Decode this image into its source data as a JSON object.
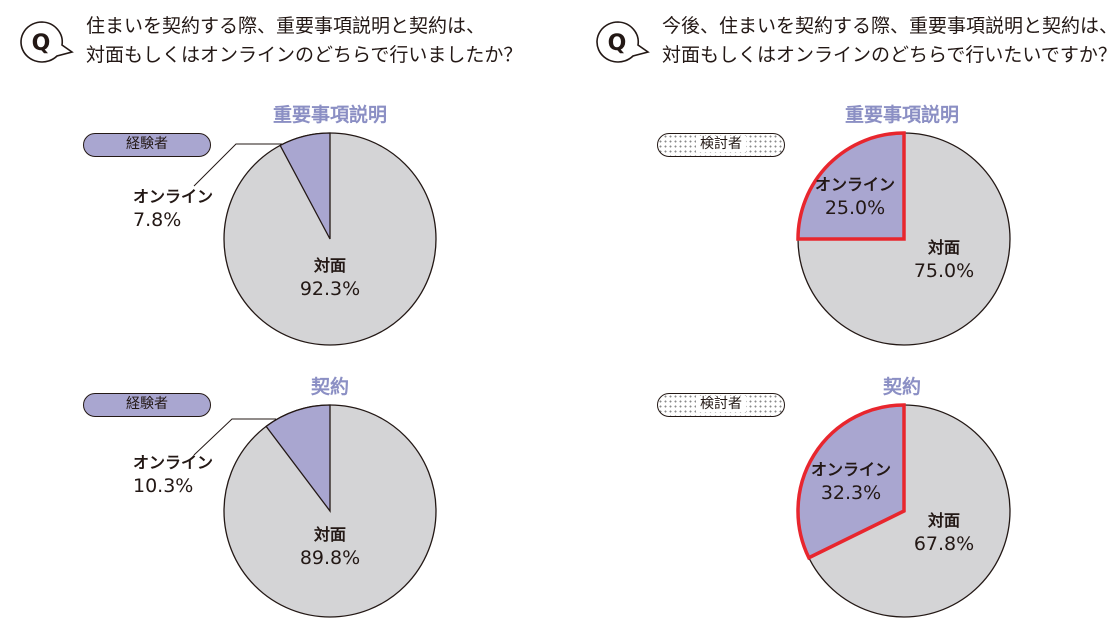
{
  "questions": {
    "left": {
      "icon": "Q",
      "line1": "住まいを契約する際、重要事項説明と契約は、",
      "line2": "対面もしくはオンラインのどちらで行いましたか？"
    },
    "right": {
      "icon": "Q",
      "line1": "今後、住まいを契約する際、重要事項説明と契約は、",
      "line2": "対面もしくはオンラインのどちらで行いたいですか？"
    }
  },
  "badges": {
    "experienced": "経験者",
    "considering": "検討者"
  },
  "colors": {
    "online": "#a9a6d0",
    "face": "#d4d4d6",
    "title": "#8b8fc4",
    "highlight": "#e8262e",
    "stroke": "#231815"
  },
  "chart_data": [
    {
      "type": "pie",
      "title": "重要事項説明",
      "group": "経験者",
      "slices": [
        {
          "label": "オンライン",
          "value": 7.8,
          "display": "7.8%"
        },
        {
          "label": "対面",
          "value": 92.3,
          "display": "92.3%"
        }
      ]
    },
    {
      "type": "pie",
      "title": "契約",
      "group": "経験者",
      "slices": [
        {
          "label": "オンライン",
          "value": 10.3,
          "display": "10.3%"
        },
        {
          "label": "対面",
          "value": 89.8,
          "display": "89.8%"
        }
      ]
    },
    {
      "type": "pie",
      "title": "重要事項説明",
      "group": "検討者",
      "slices": [
        {
          "label": "オンライン",
          "value": 25.0,
          "display": "25.0%"
        },
        {
          "label": "対面",
          "value": 75.0,
          "display": "75.0%"
        }
      ]
    },
    {
      "type": "pie",
      "title": "契約",
      "group": "検討者",
      "slices": [
        {
          "label": "オンライン",
          "value": 32.3,
          "display": "32.3%"
        },
        {
          "label": "対面",
          "value": 67.8,
          "display": "67.8%"
        }
      ]
    }
  ]
}
